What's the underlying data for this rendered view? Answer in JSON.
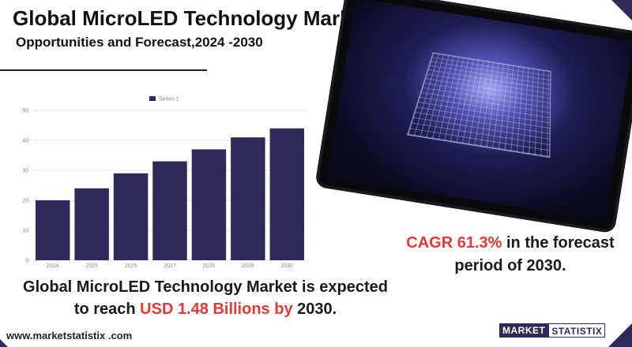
{
  "header": {
    "title": "Global MicroLED Technology Market",
    "subtitle": "Opportunities and Forecast,2024 -2030"
  },
  "colors": {
    "bar": "#2f2a59",
    "accent_red": "#e53935",
    "brand": "#2f2a59"
  },
  "chart_data": {
    "type": "bar",
    "categories": [
      "2024",
      "2025",
      "2026",
      "2027",
      "2028",
      "2029",
      "2030"
    ],
    "series": [
      {
        "name": "Series 1",
        "values": [
          20,
          24,
          29,
          33,
          37,
          41,
          44
        ]
      }
    ],
    "yticks": [
      "0",
      "10",
      "20",
      "30",
      "40",
      "50"
    ],
    "ylim": [
      0,
      50
    ],
    "legend": "top",
    "grid": true
  },
  "cagr": {
    "prefix": "CAGR  61.3%",
    "suffix": " in the forecast period of 2030."
  },
  "expectation": {
    "line1": "Global MicroLED Technology Market is expected",
    "line2_prefix": "to reach ",
    "line2_highlight": "USD 1.48 Billions by",
    "line2_suffix": " 2030."
  },
  "footer": {
    "url": "www.marketstatistix .com",
    "logo_part1": "MARKET",
    "logo_part2": "STATISTIX"
  },
  "image": {
    "icon": "microled-chip-photo"
  }
}
